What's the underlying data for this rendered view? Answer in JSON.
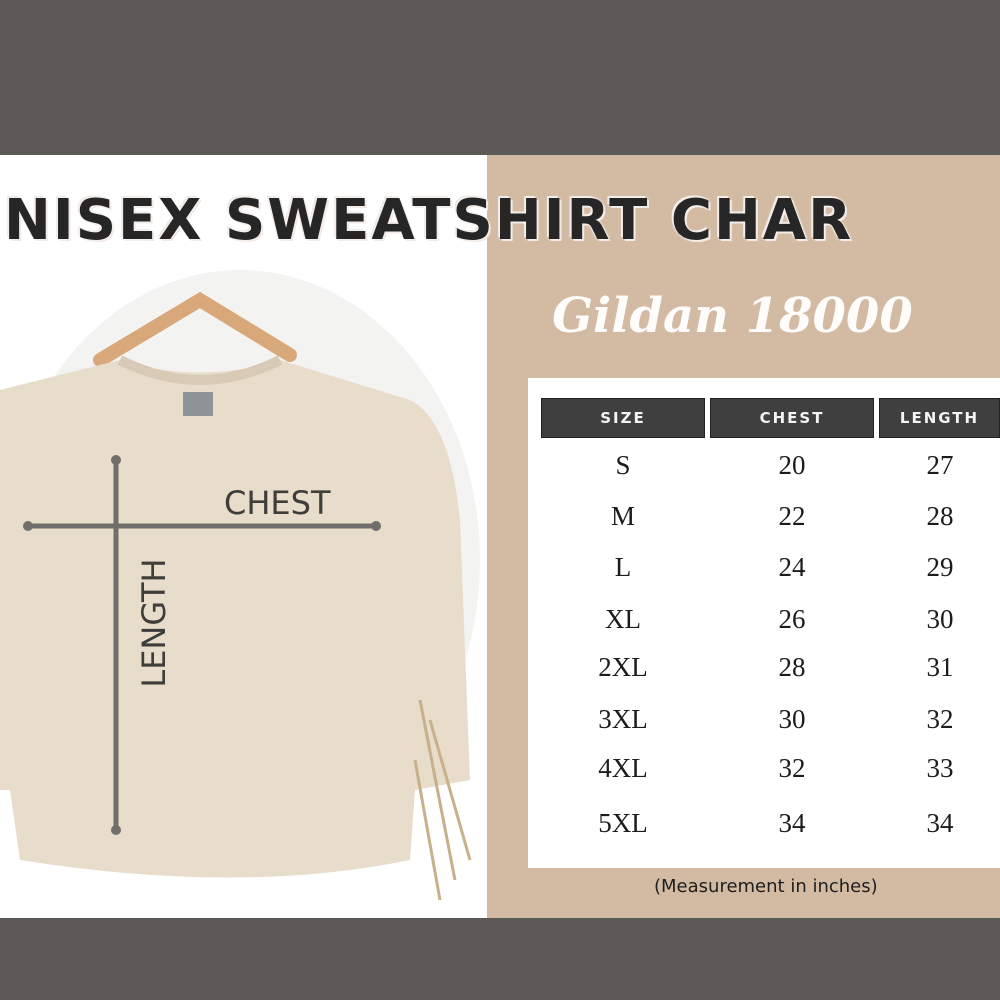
{
  "title": "NISEX SWEATSHIRT CHAR",
  "subtitle": "Gildan 18000",
  "diagram": {
    "chest_label": "CHEST",
    "length_label": "LENGTH"
  },
  "table": {
    "headers": [
      "SIZE",
      "CHEST",
      "LENGTH"
    ],
    "rows": [
      [
        "S",
        "20",
        "27"
      ],
      [
        "M",
        "22",
        "28"
      ],
      [
        "L",
        "24",
        "29"
      ],
      [
        "XL",
        "26",
        "30"
      ],
      [
        "2XL",
        "28",
        "31"
      ],
      [
        "3XL",
        "30",
        "32"
      ],
      [
        "4XL",
        "32",
        "33"
      ],
      [
        "5XL",
        "34",
        "34"
      ]
    ]
  },
  "note": "(Measurement in inches)",
  "colors": {
    "band": "#5b5a57",
    "tan": "#d3baa3",
    "header": "#3f3f3f",
    "sweatshirt": "#e8dccb"
  }
}
